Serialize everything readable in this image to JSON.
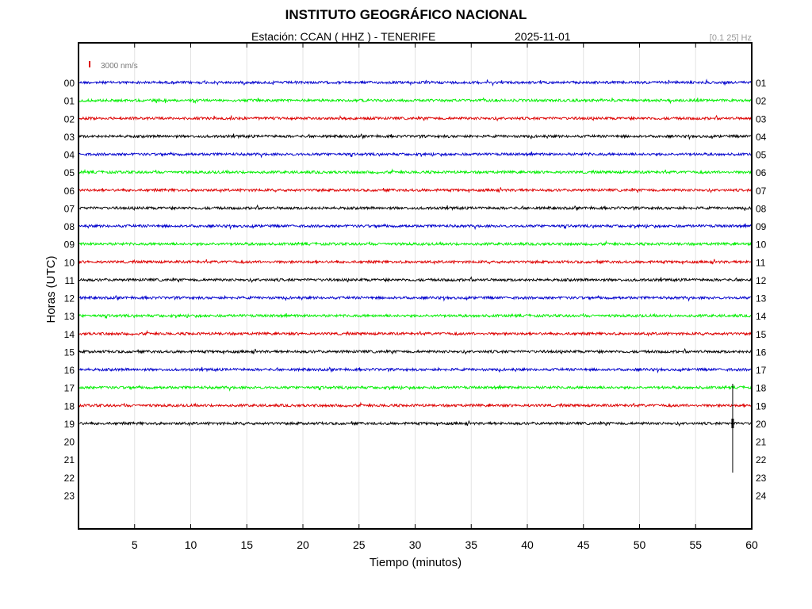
{
  "header": {
    "title": "INSTITUTO GEOGRÁFICO NACIONAL",
    "station": "Estación:  CCAN ( HHZ ) - TENERIFE",
    "date": "2025-11-01",
    "band": "[0.1 25] Hz"
  },
  "colors": {
    "blue": "#0000cc",
    "green": "#00ee00",
    "red": "#dd0000",
    "black": "#000000",
    "grid": "#e3e3e3",
    "scale_bar": "#dd0000"
  },
  "chart_data": {
    "type": "line",
    "description_type": "helicorder",
    "xlabel": "Tiempo (minutos)",
    "ylabel": "Horas (UTC)",
    "xlim": [
      0,
      60
    ],
    "xticks": [
      "5",
      "10",
      "15",
      "20",
      "25",
      "30",
      "35",
      "40",
      "45",
      "50",
      "55",
      "60"
    ],
    "left_labels": [
      "00",
      "01",
      "02",
      "03",
      "04",
      "05",
      "06",
      "07",
      "08",
      "09",
      "10",
      "11",
      "12",
      "13",
      "14",
      "15",
      "16",
      "17",
      "18",
      "19",
      "20",
      "21",
      "22",
      "23"
    ],
    "right_labels": [
      "01",
      "02",
      "03",
      "04",
      "05",
      "06",
      "07",
      "08",
      "09",
      "10",
      "11",
      "12",
      "13",
      "14",
      "15",
      "16",
      "17",
      "18",
      "19",
      "20",
      "21",
      "22",
      "23",
      "24"
    ],
    "scale_label": "3000 nm/s",
    "color_cycle": [
      "blue",
      "green",
      "red",
      "black"
    ],
    "recorded_hours": 20,
    "last_trace_end_minute": 60,
    "event": {
      "hour": 19,
      "minute": 58.3
    }
  }
}
